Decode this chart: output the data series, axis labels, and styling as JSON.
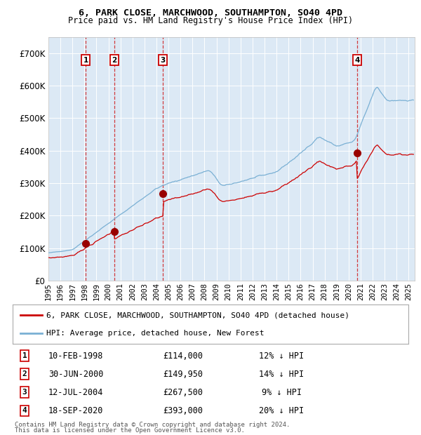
{
  "title1": "6, PARK CLOSE, MARCHWOOD, SOUTHAMPTON, SO40 4PD",
  "title2": "Price paid vs. HM Land Registry's House Price Index (HPI)",
  "bg_color": "#dce9f5",
  "red_line_color": "#cc0000",
  "blue_line_color": "#7ab0d4",
  "sale_marker_color": "#990000",
  "vline_color": "#cc0000",
  "label_box_color": "#cc0000",
  "ylim": [
    0,
    750000
  ],
  "yticks": [
    0,
    100000,
    200000,
    300000,
    400000,
    500000,
    600000,
    700000
  ],
  "ytick_labels": [
    "£0",
    "£100K",
    "£200K",
    "£300K",
    "£400K",
    "£500K",
    "£600K",
    "£700K"
  ],
  "xlim_start": 1995.0,
  "xlim_end": 2025.5,
  "sales": [
    {
      "num": 1,
      "year": 1998.11,
      "price": 114000,
      "date": "10-FEB-1998",
      "pct": "12% ↓ HPI"
    },
    {
      "num": 2,
      "year": 2000.5,
      "price": 149950,
      "date": "30-JUN-2000",
      "pct": "14% ↓ HPI"
    },
    {
      "num": 3,
      "year": 2004.53,
      "price": 267500,
      "date": "12-JUL-2004",
      "pct": "9% ↓ HPI"
    },
    {
      "num": 4,
      "year": 2020.71,
      "price": 393000,
      "date": "18-SEP-2020",
      "pct": "20% ↓ HPI"
    }
  ],
  "legend_red_label": "6, PARK CLOSE, MARCHWOOD, SOUTHAMPTON, SO40 4PD (detached house)",
  "legend_blue_label": "HPI: Average price, detached house, New Forest",
  "footer1": "Contains HM Land Registry data © Crown copyright and database right 2024.",
  "footer2": "This data is licensed under the Open Government Licence v3.0."
}
